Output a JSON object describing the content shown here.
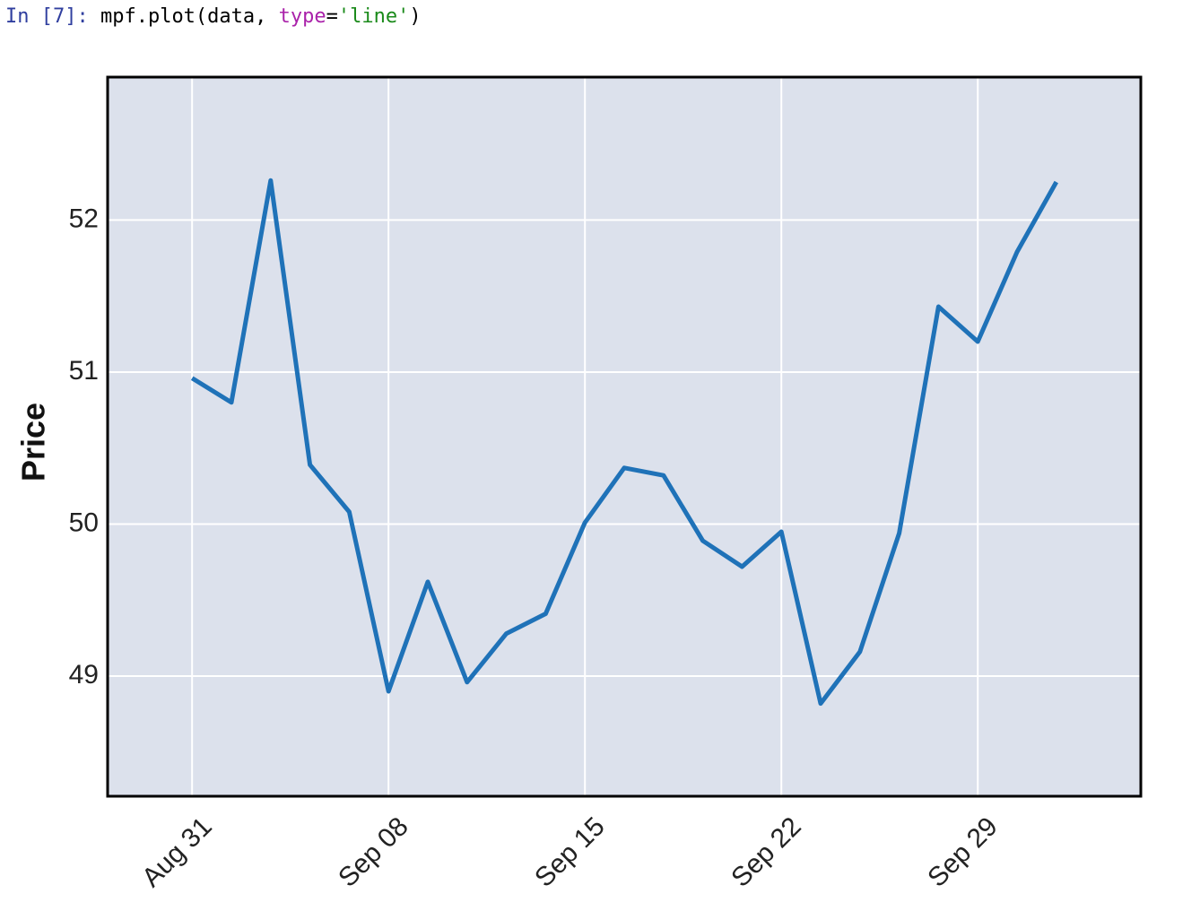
{
  "cell": {
    "prompt": "In [7]:",
    "code": [
      "mpf.plot(data, ",
      "type",
      "=",
      "'line'",
      ")"
    ]
  },
  "chart_data": {
    "type": "line",
    "ylabel": "Price",
    "categories": [
      "Aug 31",
      null,
      null,
      null,
      null,
      "Sep 08",
      null,
      null,
      null,
      null,
      "Sep 15",
      null,
      null,
      null,
      null,
      "Sep 22",
      null,
      null,
      null,
      null,
      "Sep 29",
      null,
      null
    ],
    "series": [
      {
        "color": "#1f72b8",
        "values": [
          50.96,
          50.8,
          52.26,
          50.39,
          50.08,
          48.9,
          49.62,
          48.96,
          49.28,
          49.41,
          50.01,
          50.37,
          50.32,
          49.89,
          49.72,
          49.95,
          48.82,
          49.16,
          49.94,
          51.43,
          51.2,
          51.79,
          52.25
        ]
      }
    ],
    "xlim": [
      -2.15,
      24.15
    ],
    "ylim": [
      48.21,
      52.94
    ],
    "yticks": [
      49,
      50,
      51,
      52
    ],
    "grid": true,
    "background": "#dce1ec"
  }
}
